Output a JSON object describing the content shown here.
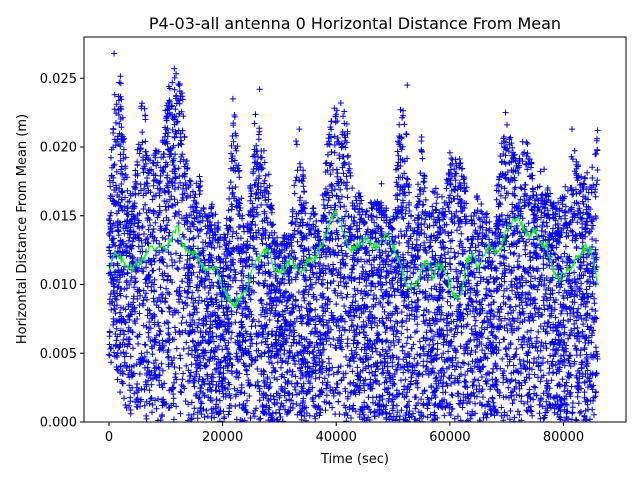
{
  "chart_data": {
    "type": "scatter",
    "title": "P4-03-all antenna 0 Horizontal Distance From Mean",
    "xlabel": "Time (sec)",
    "ylabel": "Horizontal Distance From Mean (m)",
    "xlim": [
      -4400,
      91000
    ],
    "ylim": [
      0.0,
      0.028
    ],
    "x_ticks": [
      "0",
      "20000",
      "40000",
      "60000",
      "80000"
    ],
    "x_tick_values": [
      0,
      20000,
      40000,
      60000,
      80000
    ],
    "y_ticks": [
      "0.000",
      "0.005",
      "0.010",
      "0.015",
      "0.020",
      "0.025"
    ],
    "y_tick_values": [
      0.0,
      0.005,
      0.01,
      0.015,
      0.02,
      0.025
    ],
    "grid": false,
    "legend": "none",
    "series": [
      {
        "kind": "scatter",
        "marker": "+",
        "color": "#0000ff",
        "envelope_x": [
          0,
          1000,
          2000,
          3000,
          4000,
          5000,
          6000,
          7000,
          8000,
          9000,
          10000,
          11000,
          12000,
          13000,
          14000,
          15000,
          16000,
          17000,
          18000,
          19000,
          20000,
          21000,
          22000,
          23000,
          24000,
          25000,
          26000,
          27000,
          28000,
          29000,
          30000,
          31000,
          32000,
          33000,
          34000,
          35000,
          36000,
          37000,
          38000,
          39000,
          40000,
          41000,
          42000,
          43000,
          44000,
          45000,
          46000,
          47000,
          48000,
          49000,
          50000,
          51000,
          52000,
          53000,
          54000,
          55000,
          56000,
          57000,
          58000,
          59000,
          60000,
          61000,
          62000,
          63000,
          64000,
          65000,
          66000,
          67000,
          68000,
          69000,
          70000,
          71000,
          72000,
          73000,
          74000,
          75000,
          76000,
          77000,
          78000,
          79000,
          80000,
          81000,
          82000,
          83000,
          84000,
          85000,
          86000
        ],
        "envelope_max": [
          0.017,
          0.024,
          0.0255,
          0.019,
          0.016,
          0.02,
          0.025,
          0.019,
          0.02,
          0.02,
          0.024,
          0.025,
          0.0255,
          0.024,
          0.018,
          0.017,
          0.018,
          0.015,
          0.016,
          0.015,
          0.013,
          0.016,
          0.0235,
          0.018,
          0.013,
          0.018,
          0.024,
          0.02,
          0.019,
          0.014,
          0.013,
          0.014,
          0.014,
          0.021,
          0.019,
          0.015,
          0.016,
          0.014,
          0.019,
          0.022,
          0.0235,
          0.023,
          0.022,
          0.016,
          0.017,
          0.015,
          0.016,
          0.016,
          0.018,
          0.015,
          0.015,
          0.022,
          0.0245,
          0.016,
          0.015,
          0.021,
          0.016,
          0.017,
          0.017,
          0.016,
          0.02,
          0.02,
          0.019,
          0.017,
          0.015,
          0.017,
          0.015,
          0.016,
          0.016,
          0.02,
          0.0225,
          0.02,
          0.019,
          0.021,
          0.02,
          0.017,
          0.019,
          0.018,
          0.016,
          0.016,
          0.017,
          0.019,
          0.02,
          0.018,
          0.018,
          0.019,
          0.021
        ],
        "envelope_min": [
          0.0045,
          0.003,
          0.002,
          0.001,
          0.0,
          0.001,
          0.0005,
          0.0,
          0.0,
          0.0,
          0.001,
          0.0,
          0.0,
          0.0,
          0.0,
          0.0,
          0.0,
          0.0,
          0.0,
          0.0,
          0.0,
          0.0005,
          0.0,
          0.0,
          0.0,
          0.0,
          0.0,
          0.0,
          0.0,
          0.0,
          0.0,
          0.0,
          0.0,
          0.0,
          0.0,
          0.0,
          0.0,
          0.0,
          0.0,
          0.0,
          0.0,
          0.0,
          0.0,
          0.0,
          0.0,
          0.0,
          0.0,
          0.0,
          0.0,
          0.0,
          0.0,
          0.0,
          0.0,
          0.0,
          0.0,
          0.0,
          0.0,
          0.0,
          0.0,
          0.0,
          0.0,
          0.0,
          0.0,
          0.0,
          0.0,
          0.0,
          0.0,
          0.0,
          0.0,
          0.0,
          0.0,
          0.0,
          0.0,
          0.0,
          0.0,
          0.0,
          0.0,
          0.0,
          0.0,
          0.0,
          0.0,
          0.0,
          0.0,
          0.0,
          0.0,
          0.0,
          0.001
        ],
        "outliers": [
          {
            "x": 900,
            "y": 0.0268
          },
          {
            "x": 11500,
            "y": 0.0257
          },
          {
            "x": 21800,
            "y": 0.0235
          },
          {
            "x": 26500,
            "y": 0.0242
          },
          {
            "x": 52500,
            "y": 0.0245
          },
          {
            "x": 69800,
            "y": 0.0225
          },
          {
            "x": 40800,
            "y": 0.0232
          },
          {
            "x": 33500,
            "y": 0.0213
          },
          {
            "x": 86000,
            "y": 0.0212
          },
          {
            "x": 81500,
            "y": 0.0213
          }
        ]
      },
      {
        "kind": "line",
        "color": "#00ff00",
        "x": [
          0,
          1000,
          2000,
          3000,
          4000,
          5000,
          6000,
          7000,
          8000,
          9000,
          10000,
          11000,
          12000,
          13000,
          14000,
          15000,
          16000,
          17000,
          18000,
          19000,
          20000,
          21000,
          22000,
          23000,
          24000,
          25000,
          26000,
          27000,
          28000,
          29000,
          30000,
          31000,
          32000,
          33000,
          34000,
          35000,
          36000,
          37000,
          38000,
          39000,
          40000,
          41000,
          42000,
          43000,
          44000,
          45000,
          46000,
          47000,
          48000,
          49000,
          50000,
          51000,
          52000,
          53000,
          54000,
          55000,
          56000,
          57000,
          58000,
          59000,
          60000,
          61000,
          62000,
          63000,
          64000,
          65000,
          66000,
          67000,
          68000,
          69000,
          70000,
          71000,
          72000,
          73000,
          74000,
          75000,
          76000,
          77000,
          78000,
          79000,
          80000,
          81000,
          82000,
          83000,
          84000,
          85000,
          86000
        ],
        "y": [
          0.0112,
          0.0122,
          0.0118,
          0.0115,
          0.0112,
          0.0115,
          0.0118,
          0.0127,
          0.0126,
          0.0129,
          0.0124,
          0.0134,
          0.0143,
          0.0128,
          0.0124,
          0.0122,
          0.0118,
          0.011,
          0.0112,
          0.011,
          0.0098,
          0.009,
          0.0083,
          0.0092,
          0.0094,
          0.0106,
          0.0118,
          0.0123,
          0.0125,
          0.0112,
          0.011,
          0.0112,
          0.0118,
          0.0112,
          0.011,
          0.0118,
          0.0118,
          0.0125,
          0.0134,
          0.0148,
          0.0152,
          0.0142,
          0.0128,
          0.0125,
          0.013,
          0.0132,
          0.013,
          0.0126,
          0.0134,
          0.0135,
          0.0128,
          0.0118,
          0.0104,
          0.0098,
          0.01,
          0.011,
          0.012,
          0.0105,
          0.0115,
          0.011,
          0.01,
          0.009,
          0.0095,
          0.0118,
          0.0122,
          0.0112,
          0.0122,
          0.0128,
          0.0124,
          0.0128,
          0.0138,
          0.0145,
          0.015,
          0.014,
          0.0135,
          0.014,
          0.013,
          0.0128,
          0.0112,
          0.0103,
          0.0108,
          0.0112,
          0.0118,
          0.0122,
          0.0128,
          0.0122,
          0.01
        ]
      }
    ]
  }
}
